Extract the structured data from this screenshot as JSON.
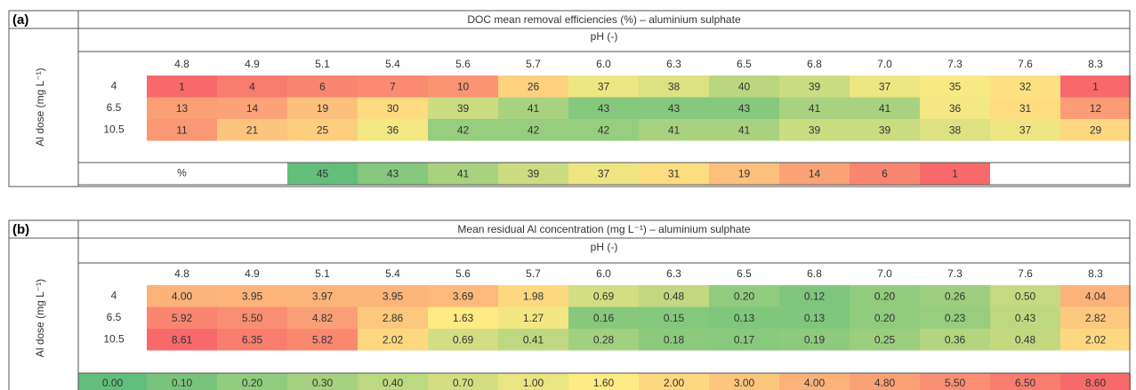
{
  "panels": [
    {
      "label": "(a)",
      "title": "DOC mean removal efficiencies (%) – aluminium sulphate",
      "x_label": "pH (-)",
      "y_label": "Al dose (mg L⁻¹)",
      "columns": [
        "4.8",
        "4.9",
        "5.1",
        "5.4",
        "5.6",
        "5.7",
        "6.0",
        "6.3",
        "6.5",
        "6.8",
        "7.0",
        "7.3",
        "7.6",
        "8.3"
      ],
      "rows": [
        {
          "label": "4",
          "values": [
            "1",
            "4",
            "6",
            "7",
            "10",
            "26",
            "37",
            "38",
            "40",
            "39",
            "37",
            "35",
            "32",
            "1"
          ]
        },
        {
          "label": "6.5",
          "values": [
            "13",
            "14",
            "19",
            "30",
            "39",
            "41",
            "43",
            "43",
            "43",
            "41",
            "41",
            "36",
            "31",
            "12"
          ]
        },
        {
          "label": "10.5",
          "values": [
            "11",
            "21",
            "25",
            "36",
            "42",
            "42",
            "42",
            "41",
            "41",
            "39",
            "39",
            "38",
            "37",
            "29"
          ]
        }
      ],
      "legend": {
        "label": "%",
        "values": [
          "45",
          "43",
          "41",
          "39",
          "37",
          "31",
          "19",
          "14",
          "6",
          "1"
        ]
      },
      "colorscale": [
        "#63be7b",
        "#ffeb84",
        "#f8696b"
      ]
    },
    {
      "label": "(b)",
      "title": "Mean residual Al concentration (mg L⁻¹) – aluminium sulphate",
      "x_label": "pH (-)",
      "y_label": "Al dose (mg L⁻¹)",
      "columns": [
        "4.8",
        "4.9",
        "5.1",
        "5.4",
        "5.6",
        "5.7",
        "6.0",
        "6.3",
        "6.5",
        "6.8",
        "7.0",
        "7.3",
        "7.6",
        "8.3"
      ],
      "rows": [
        {
          "label": "4",
          "values": [
            "4.00",
            "3.95",
            "3.97",
            "3.95",
            "3.69",
            "1.98",
            "0.69",
            "0.48",
            "0.20",
            "0.12",
            "0.20",
            "0.26",
            "0.50",
            "4.04"
          ]
        },
        {
          "label": "6.5",
          "values": [
            "5.92",
            "5.50",
            "4.82",
            "2.86",
            "1.63",
            "1.27",
            "0.16",
            "0.15",
            "0.13",
            "0.13",
            "0.20",
            "0.23",
            "0.43",
            "2.82"
          ]
        },
        {
          "label": "10.5",
          "values": [
            "8.61",
            "6.35",
            "5.82",
            "2.02",
            "0.69",
            "0.41",
            "0.28",
            "0.18",
            "0.17",
            "0.19",
            "0.25",
            "0.36",
            "0.48",
            "2.02"
          ]
        }
      ],
      "legend": {
        "values": [
          "0.00",
          "0.10",
          "0.20",
          "0.30",
          "0.40",
          "0.70",
          "1.00",
          "1.60",
          "2.00",
          "3.00",
          "4.00",
          "4.80",
          "5.50",
          "6.50",
          "8.60"
        ]
      },
      "colorscale": [
        "#63be7b",
        "#ffeb84",
        "#f8696b"
      ]
    }
  ]
}
